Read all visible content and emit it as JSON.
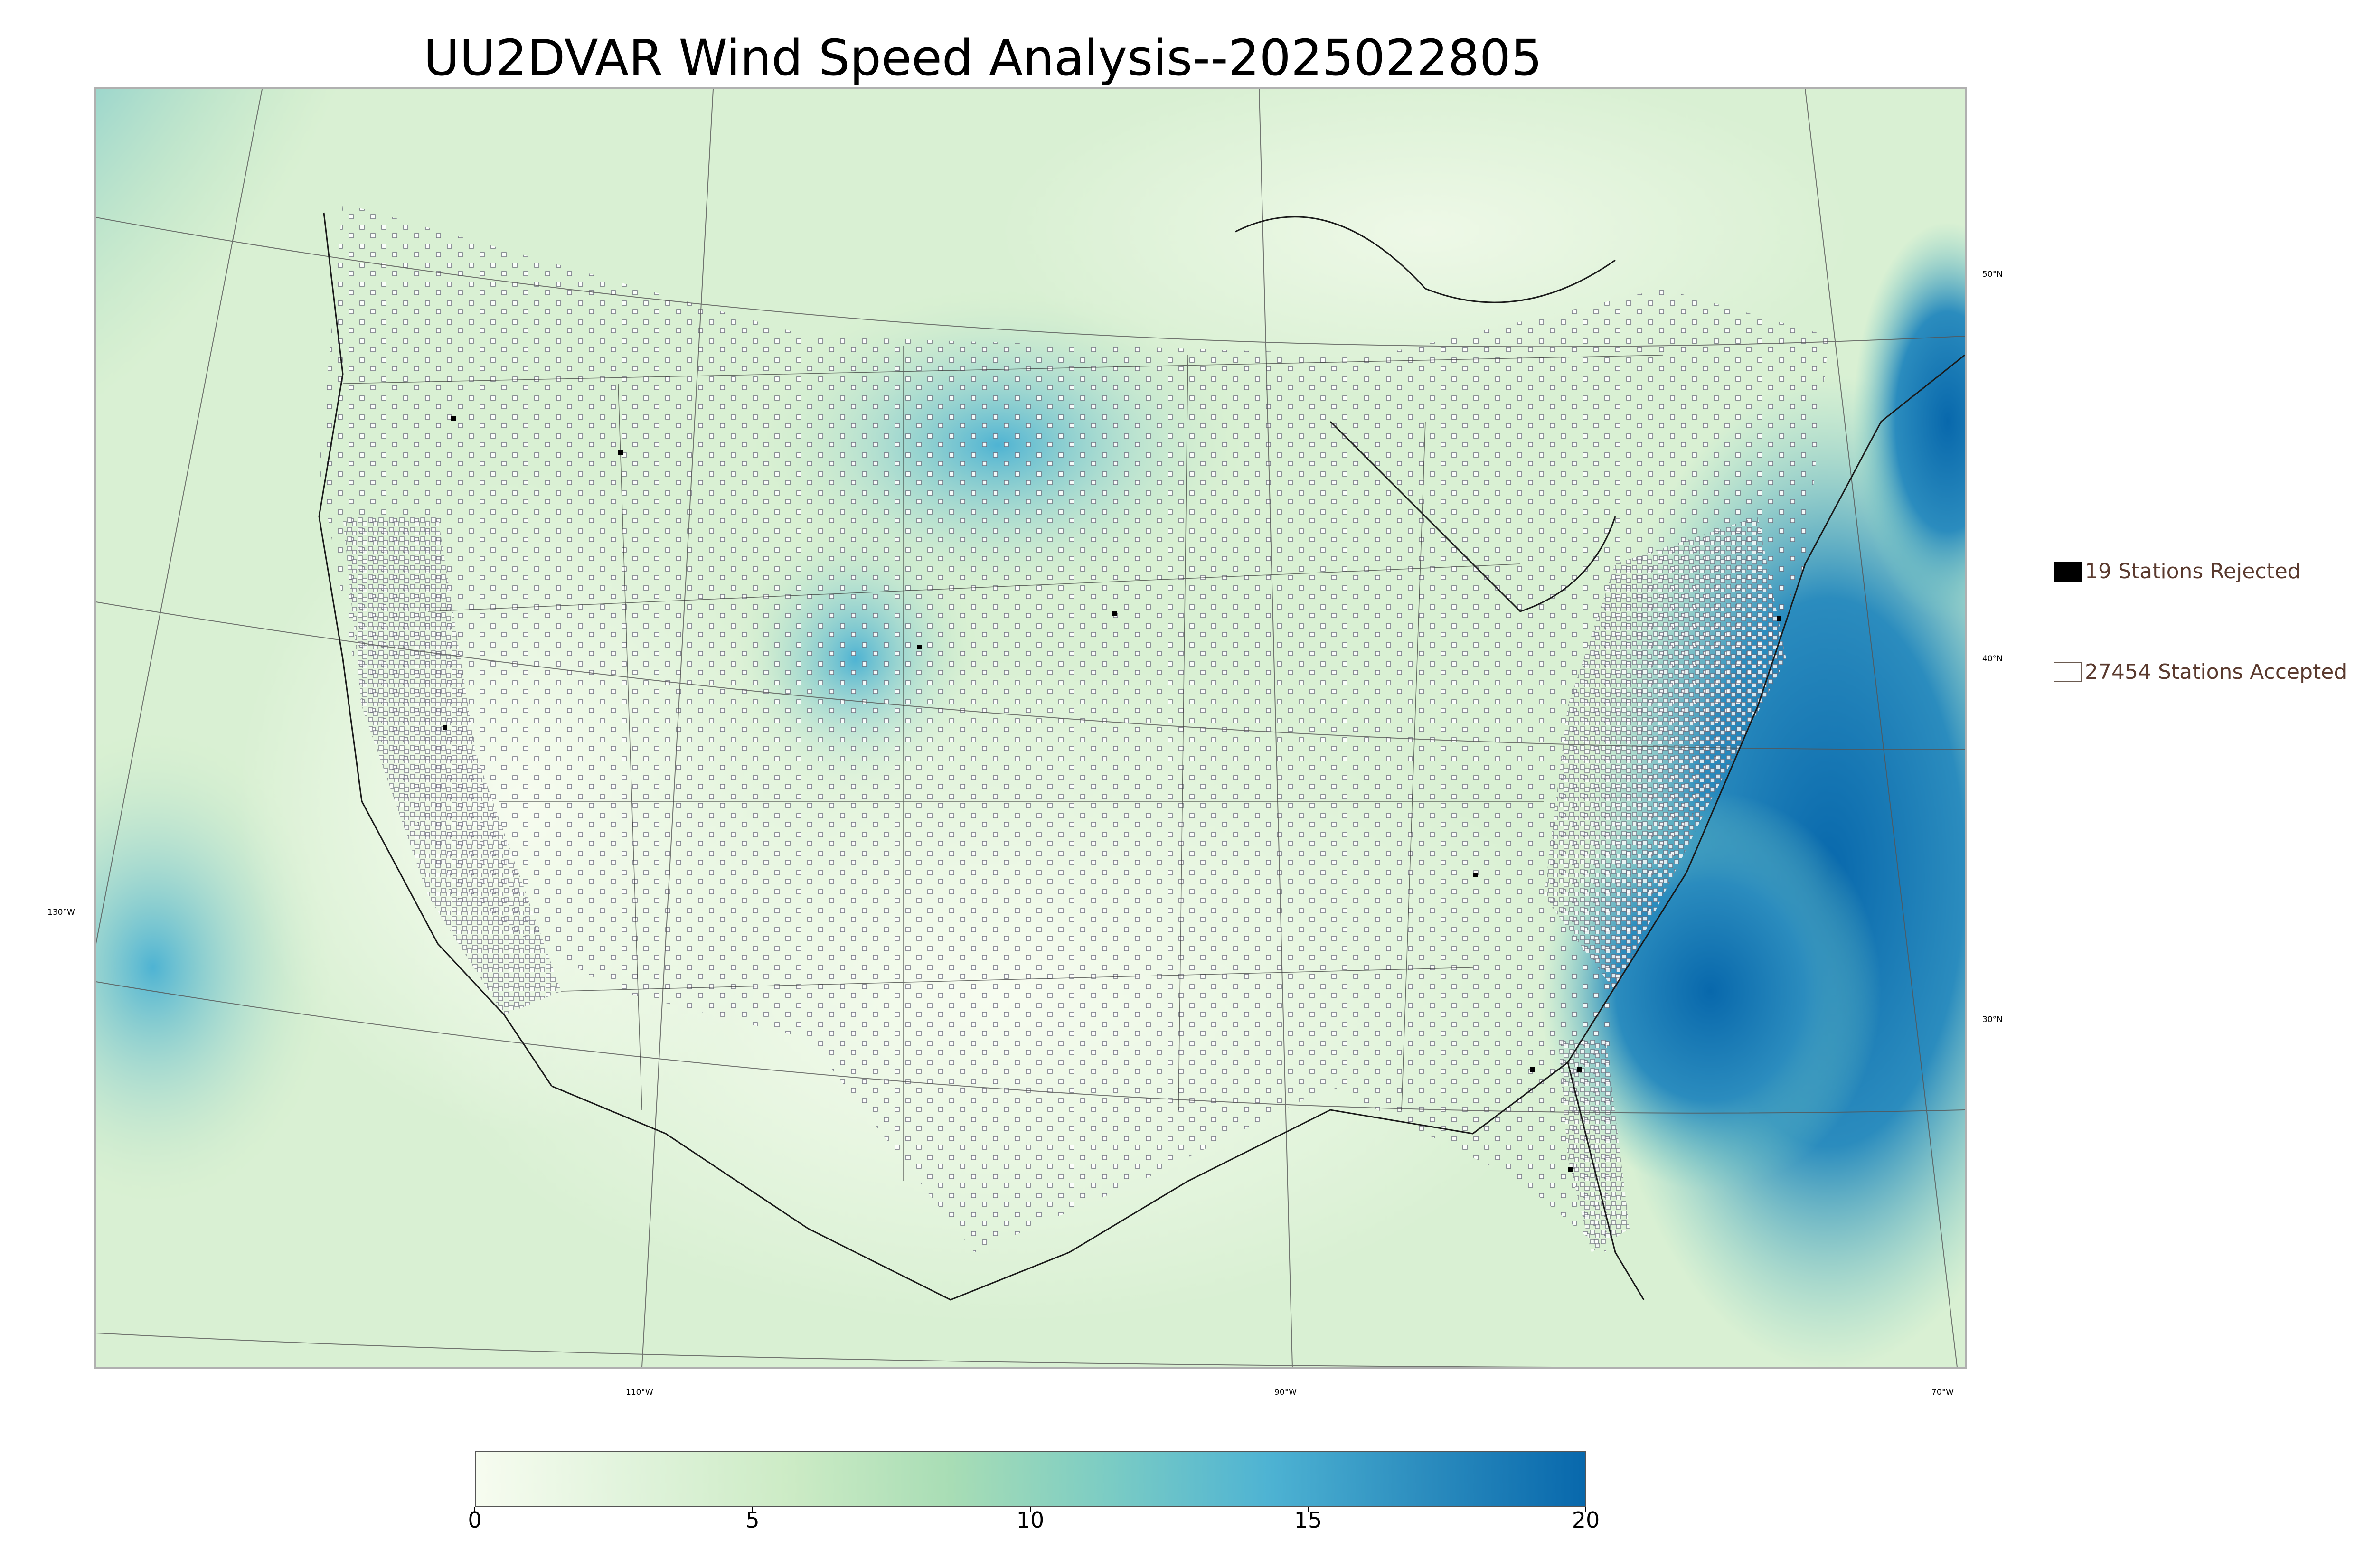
{
  "title": "UU2DVAR Wind Speed Analysis--2025022805",
  "map": {
    "background_colors": {
      "calm": "#f2faef",
      "light": "#d4efcf",
      "moderate": "#8fd1bd",
      "strong": "#2b8cbe",
      "very_strong": "#0868ac"
    },
    "graticule": {
      "latitude_labels": [
        "50°N",
        "40°N",
        "30°N"
      ],
      "longitude_labels": [
        "130°W",
        "110°W",
        "90°W",
        "70°W"
      ]
    }
  },
  "legend": {
    "rejected": {
      "count_label": "19 Stations Rejected",
      "swatch_color": "#000000"
    },
    "accepted": {
      "count_label": "27454 Stations Accepted",
      "swatch_color": "#ffffff"
    }
  },
  "colorbar": {
    "min": 0,
    "max": 20,
    "tick_labels": [
      "0",
      "5",
      "10",
      "15",
      "20"
    ],
    "colors": [
      "#f7fcf0",
      "#e0f3db",
      "#ccebc5",
      "#a8ddb5",
      "#7bccc4",
      "#4eb3d3",
      "#2b8cbe",
      "#0868ac"
    ]
  }
}
